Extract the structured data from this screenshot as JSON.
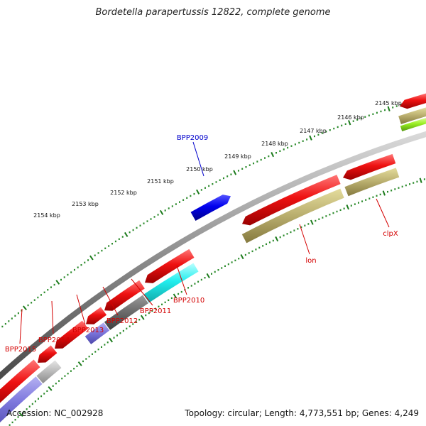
{
  "title": "Bordetella parapertussis 12822, complete genome",
  "footer": {
    "accession": "Accession: NC_002928",
    "summary": "Topology: circular; Length: 4,773,551 bp; Genes: 4,249"
  },
  "colors": {
    "forward_gene": "#e50000",
    "highlight_gene": "#0000dd",
    "tick_major": "#1b7a1b",
    "tick_minor": "#2a8a2a",
    "backbone": "#8c8c8c",
    "reverse_label": "#d40000",
    "forward_label": "#0000cc"
  },
  "scale_labels": [
    "2154 kbp",
    "2153 kbp",
    "2152 kbp",
    "2151 kbp",
    "2150 kbp",
    "2149 kbp",
    "2148 kbp",
    "2147 kbp",
    "2146 kbp",
    "2145 kbp"
  ],
  "gene_labels": {
    "bpp2009": "BPP2009",
    "bpp2010": "BPP2010",
    "bpp2011": "BPP2011",
    "bpp2012": "BPP2012",
    "bpp2013": "BPP2013",
    "bpp2014": "BPP2014",
    "bpp2015": "BPP2015",
    "lon": "lon",
    "clpx": "clpX"
  }
}
